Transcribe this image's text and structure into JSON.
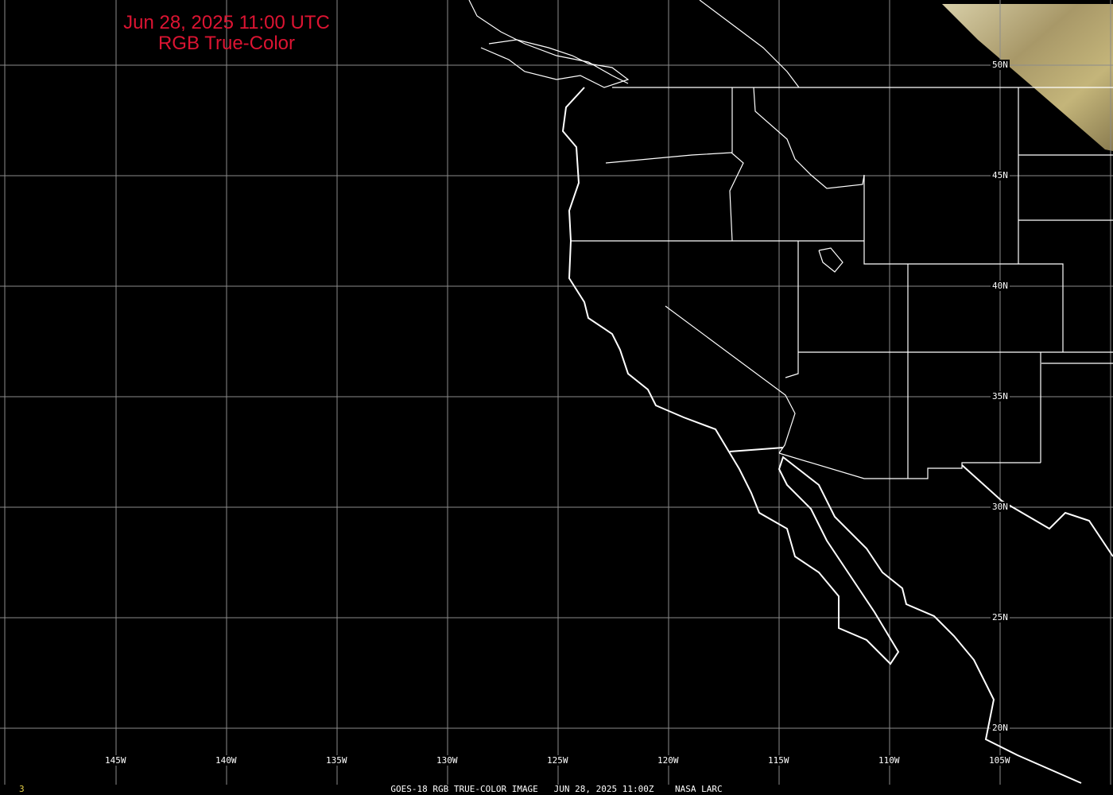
{
  "title": {
    "line1": "Jun 28, 2025 11:00 UTC",
    "line2": "RGB True-Color",
    "color": "#dc1432"
  },
  "footer": {
    "caption": "GOES-18 RGB TRUE-COLOR IMAGE   JUN 28, 2025 11:00Z    NASA LARC",
    "frame_number": "3"
  },
  "grid": {
    "longitude_labels": [
      "145W",
      "140W",
      "135W",
      "130W",
      "125W",
      "120W",
      "115W",
      "110W",
      "105W"
    ],
    "latitude_labels": [
      "50N",
      "45N",
      "40N",
      "35N",
      "30N",
      "25N",
      "20N"
    ],
    "grid_color": "#8c8c8c",
    "boundary_color": "#ffffff"
  },
  "imagery": {
    "coverage": "partial, northeast corner only",
    "cloud_color": "#b8a870"
  }
}
